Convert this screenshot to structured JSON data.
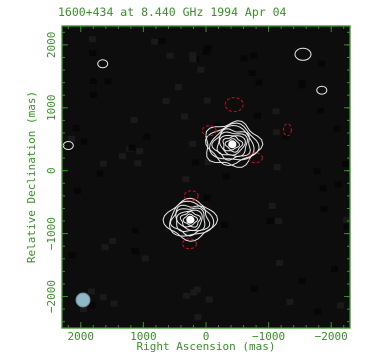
{
  "chart_data": {
    "type": "contour",
    "title": "1600+434 at 8.440 GHz 1994 Apr 04",
    "xlabel": "Right Ascension  (mas)",
    "ylabel": "Relative Declination  (mas)",
    "xlim": [
      2300,
      -2300
    ],
    "ylim": [
      -2500,
      2300
    ],
    "x_ticks": [
      2000,
      1000,
      0,
      -1000,
      -2000
    ],
    "x_tick_labels": [
      "2000",
      "1000",
      "0",
      "−1000",
      "−2000"
    ],
    "y_ticks": [
      2000,
      1000,
      0,
      -1000,
      -2000
    ],
    "y_tick_labels": [
      "2000",
      "1000",
      "0",
      "−1000",
      "−2000"
    ],
    "components": [
      {
        "x": -420,
        "y": 420,
        "peak_contours": 9
      },
      {
        "x": 250,
        "y": -780,
        "peak_contours": 8
      }
    ],
    "colors": {
      "frame": "#3a8f2a",
      "positive_contour": "#e8e8e8",
      "negative_contour": "#c0141a",
      "background": "#0d0d0d",
      "beam": "#8fb8c8"
    }
  }
}
